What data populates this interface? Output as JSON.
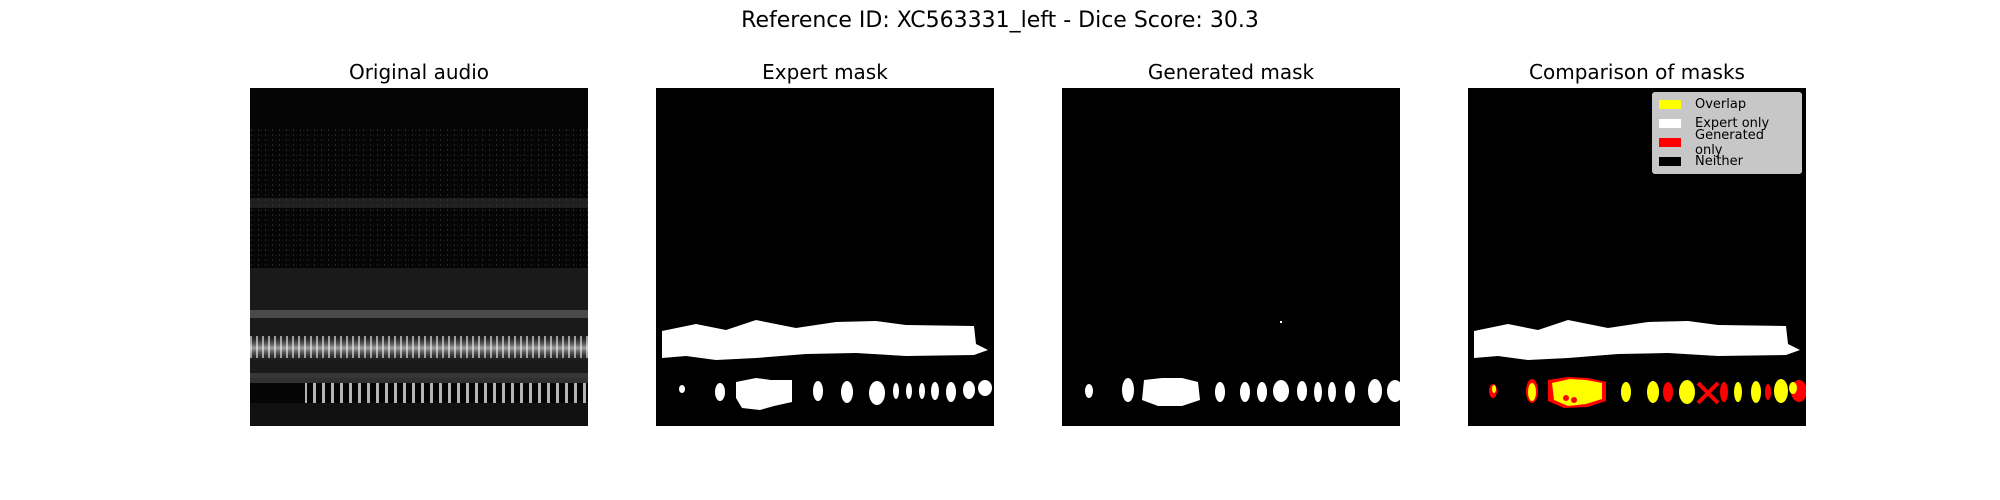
{
  "figure": {
    "suptitle": "Reference ID: XC563331_left - Dice Score: 30.3"
  },
  "panels": [
    {
      "title": "Original audio"
    },
    {
      "title": "Expert mask"
    },
    {
      "title": "Generated mask"
    },
    {
      "title": "Comparison of masks"
    }
  ],
  "legend": {
    "items": [
      {
        "label": "Overlap",
        "color": "#ffff00"
      },
      {
        "label": "Expert only",
        "color": "#ffffff"
      },
      {
        "label": "Generated only",
        "color": "#ff0000"
      },
      {
        "label": "Neither",
        "color": "#000000"
      }
    ]
  },
  "colors": {
    "background": "#000000",
    "expert": "#ffffff",
    "generated": "#ffffff",
    "overlap": "#ffff00",
    "generated_only": "#ff0000"
  }
}
